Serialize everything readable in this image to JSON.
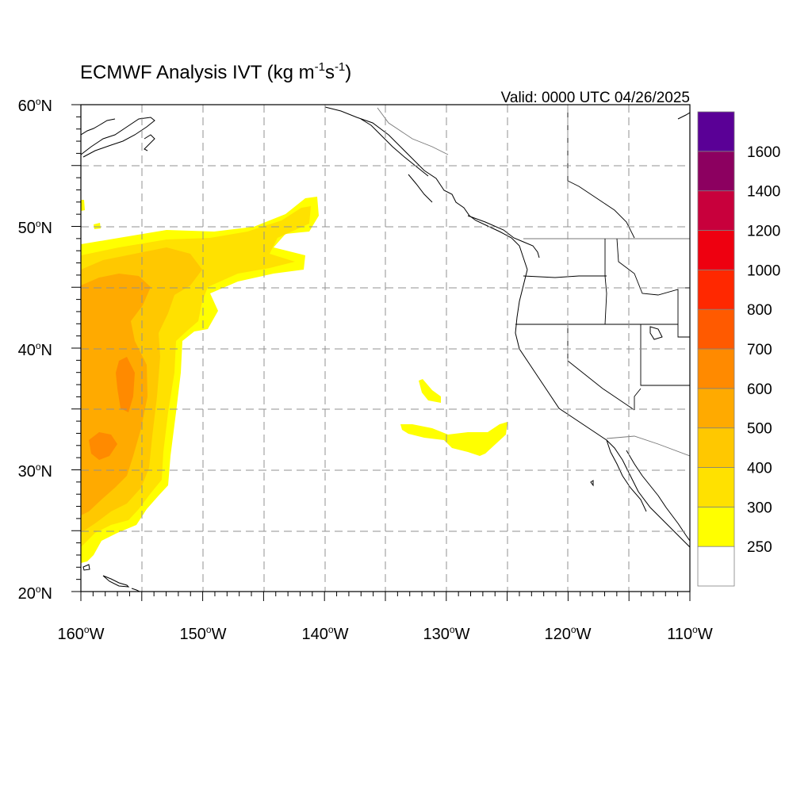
{
  "title": {
    "prefix": "ECMWF Analysis IVT (kg m",
    "exp1": "-1",
    "mid": "s",
    "exp2": "-1",
    "suffix": ")"
  },
  "valid_label": "Valid: 0000 UTC 04/26/2025",
  "map": {
    "lon_range": [
      -160,
      -110
    ],
    "lat_range": [
      20,
      60
    ],
    "gridlines": "dashed",
    "lat_ticks": [
      {
        "base": "20",
        "deg": "o",
        "hem": "N"
      },
      {
        "base": "30",
        "deg": "o",
        "hem": "N"
      },
      {
        "base": "40",
        "deg": "o",
        "hem": "N"
      },
      {
        "base": "50",
        "deg": "o",
        "hem": "N"
      },
      {
        "base": "60",
        "deg": "o",
        "hem": "N"
      }
    ],
    "lon_ticks": [
      {
        "base": "160",
        "deg": "o",
        "hem": "W"
      },
      {
        "base": "150",
        "deg": "o",
        "hem": "W"
      },
      {
        "base": "140",
        "deg": "o",
        "hem": "W"
      },
      {
        "base": "130",
        "deg": "o",
        "hem": "W"
      },
      {
        "base": "120",
        "deg": "o",
        "hem": "W"
      },
      {
        "base": "110",
        "deg": "o",
        "hem": "W"
      }
    ]
  },
  "colorbar": {
    "colors": [
      "#ffffff",
      "#ffff00",
      "#ffe100",
      "#ffc800",
      "#ffaa00",
      "#ff8a00",
      "#ff5a00",
      "#ff2800",
      "#ee0010",
      "#c8003c",
      "#8c0060",
      "#5a0096"
    ],
    "labels": [
      "250",
      "300",
      "400",
      "500",
      "600",
      "700",
      "800",
      "1000",
      "1200",
      "1400",
      "1600"
    ]
  }
}
